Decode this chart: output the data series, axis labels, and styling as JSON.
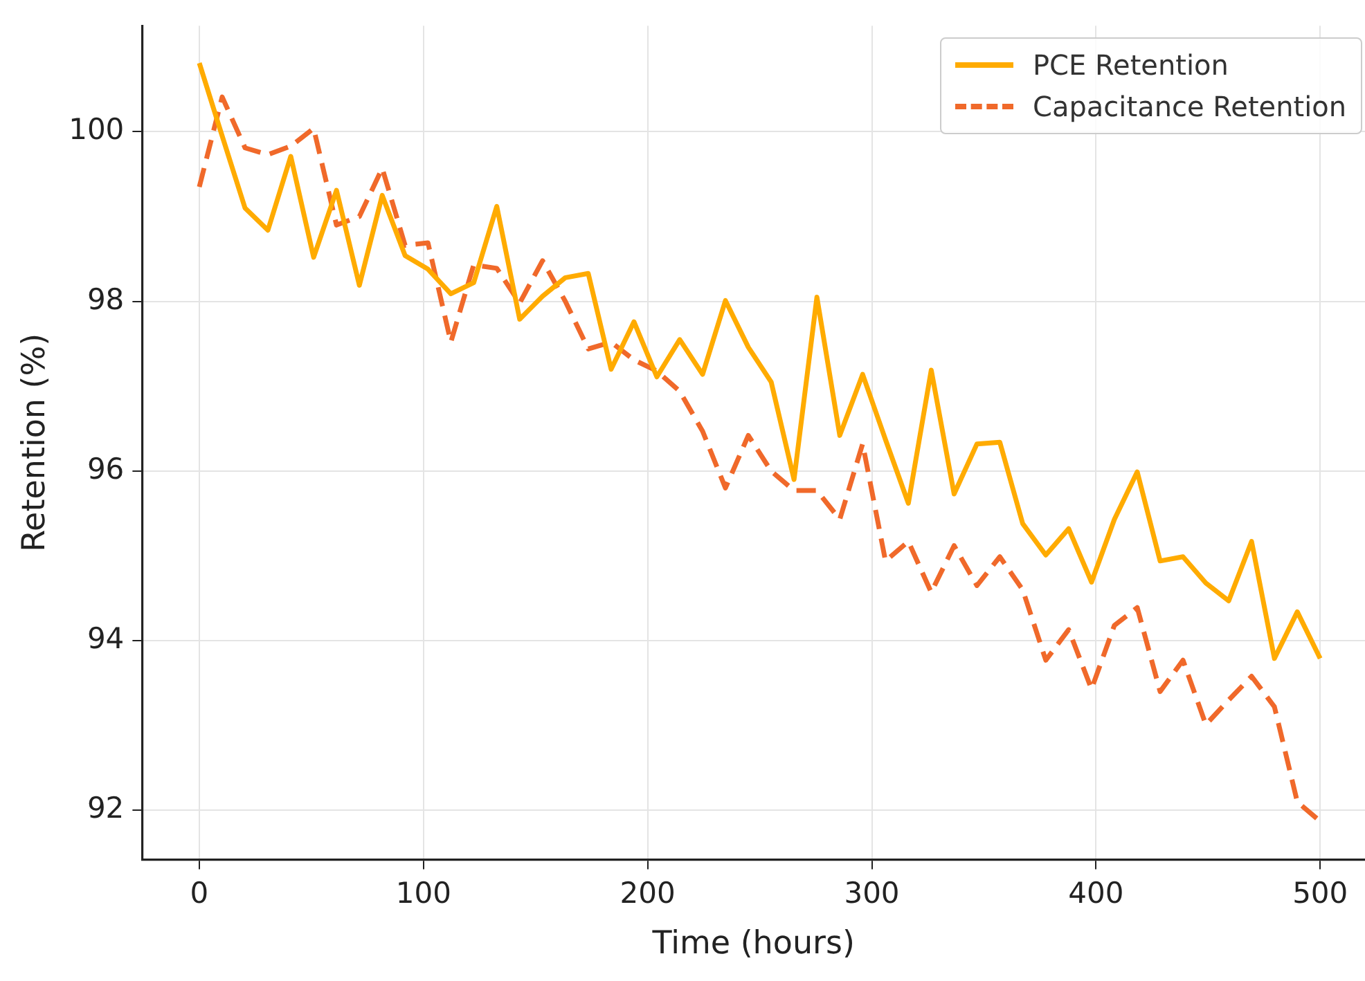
{
  "chart_data": {
    "type": "line",
    "xlabel": "Time (hours)",
    "ylabel": "Retention (%)",
    "x": [
      0,
      10.2,
      20.4,
      30.6,
      40.8,
      51.0,
      61.2,
      71.4,
      81.6,
      91.8,
      102.0,
      112.2,
      122.4,
      132.7,
      142.9,
      153.1,
      163.3,
      173.5,
      183.7,
      193.9,
      204.1,
      214.3,
      224.5,
      234.7,
      244.9,
      255.1,
      265.3,
      275.5,
      285.7,
      295.9,
      306.1,
      316.3,
      326.5,
      336.7,
      346.9,
      357.1,
      367.3,
      377.6,
      387.8,
      398.0,
      408.2,
      418.4,
      428.6,
      438.8,
      449.0,
      459.2,
      469.4,
      479.6,
      489.8,
      500
    ],
    "series": [
      {
        "name": "PCE Retention",
        "color": "#ffab00",
        "line_style": "solid",
        "values": [
          100.81,
          99.95,
          99.1,
          98.84,
          99.71,
          98.52,
          99.31,
          98.19,
          99.25,
          98.54,
          98.38,
          98.09,
          98.22,
          99.12,
          97.79,
          98.06,
          98.28,
          98.33,
          97.2,
          97.76,
          97.11,
          97.55,
          97.14,
          98.01,
          97.46,
          97.05,
          95.9,
          98.05,
          96.42,
          97.14,
          96.37,
          95.62,
          97.19,
          95.73,
          96.32,
          96.34,
          95.38,
          95.01,
          95.32,
          94.69,
          95.43,
          95.99,
          94.94,
          94.99,
          94.68,
          94.47,
          95.17,
          93.79,
          94.34,
          93.79
        ]
      },
      {
        "name": "Capacitance Retention",
        "color": "#f0692a",
        "line_style": "dashed",
        "values": [
          99.35,
          100.41,
          99.81,
          99.73,
          99.83,
          100.04,
          98.9,
          99.0,
          99.57,
          98.66,
          98.69,
          97.52,
          98.43,
          98.39,
          97.98,
          98.48,
          98.0,
          97.44,
          97.52,
          97.31,
          97.18,
          96.94,
          96.47,
          95.8,
          96.42,
          96.0,
          95.77,
          95.77,
          95.43,
          96.32,
          94.94,
          95.17,
          94.57,
          95.12,
          94.65,
          94.99,
          94.6,
          93.77,
          94.13,
          93.43,
          94.18,
          94.39,
          93.4,
          93.77,
          93.01,
          93.3,
          93.58,
          93.22,
          92.1,
          91.87
        ]
      }
    ],
    "xlim": [
      -25.5,
      520
    ],
    "ylim": [
      91.42,
      101.25
    ],
    "xticks": [
      0,
      100,
      200,
      300,
      400,
      500
    ],
    "yticks": [
      92,
      94,
      96,
      98,
      100
    ],
    "grid": true,
    "legend": "top right",
    "marker": "none"
  }
}
